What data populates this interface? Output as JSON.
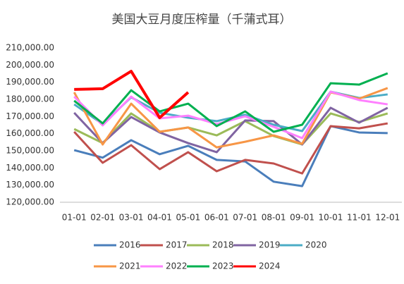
{
  "chart_data": {
    "type": "line",
    "title": "美国大豆月度压榨量（千蒲式耳）",
    "categories": [
      "01-01",
      "02-01",
      "03-01",
      "04-01",
      "05-01",
      "06-01",
      "07-01",
      "08-01",
      "09-01",
      "10-01",
      "11-01",
      "12-01"
    ],
    "ylim": [
      120000,
      210000
    ],
    "yticks": [
      {
        "value": 120000,
        "label": "120,000.00"
      },
      {
        "value": 130000,
        "label": "130,000.00"
      },
      {
        "value": 140000,
        "label": "140,000.00"
      },
      {
        "value": 150000,
        "label": "150,000.00"
      },
      {
        "value": 160000,
        "label": "160,000.00"
      },
      {
        "value": 170000,
        "label": "170,000.00"
      },
      {
        "value": 180000,
        "label": "180,000.00"
      },
      {
        "value": 190000,
        "label": "190,000.00"
      },
      {
        "value": 200000,
        "label": "200,000.00"
      },
      {
        "value": 210000,
        "label": "210,000.00"
      }
    ],
    "grid": false,
    "legend": "bottom",
    "series": [
      {
        "name": "2016",
        "color": "#4a7ebb",
        "values": [
          150400,
          146000,
          156200,
          148000,
          152900,
          144700,
          143800,
          132000,
          129400,
          164400,
          160700,
          160300
        ]
      },
      {
        "name": "2017",
        "color": "#c0504d",
        "values": [
          161100,
          143000,
          153300,
          139300,
          149200,
          138100,
          144700,
          142600,
          136800,
          164400,
          163100,
          166000
        ]
      },
      {
        "name": "2018",
        "color": "#9bbb59",
        "values": [
          162700,
          154500,
          171800,
          161100,
          163600,
          159000,
          167300,
          158600,
          153700,
          171800,
          166800,
          171800
        ]
      },
      {
        "name": "2019",
        "color": "#8064a2",
        "values": [
          172200,
          154500,
          169700,
          160700,
          154500,
          149200,
          167700,
          167300,
          153700,
          175100,
          166400,
          175100
        ]
      },
      {
        "name": "2020",
        "color": "#4bacc6",
        "values": [
          177100,
          165600,
          181200,
          172200,
          169300,
          167300,
          171000,
          165200,
          161500,
          184500,
          180800,
          182900
        ]
      },
      {
        "name": "2021",
        "color": "#f79646",
        "values": [
          184100,
          153700,
          177500,
          161100,
          163600,
          152000,
          155300,
          159000,
          154100,
          184100,
          180400,
          186600
        ]
      },
      {
        "name": "2022",
        "color": "#ff80ff",
        "values": [
          181600,
          164800,
          181600,
          168900,
          170500,
          165600,
          170100,
          164000,
          157400,
          184500,
          179600,
          177100
        ]
      },
      {
        "name": "2023",
        "color": "#00b050",
        "values": [
          179200,
          166000,
          185300,
          173000,
          177500,
          164400,
          173000,
          161100,
          165200,
          189400,
          188600,
          195200
        ]
      },
      {
        "name": "2024",
        "color": "#ff0000",
        "values": [
          185800,
          186200,
          196400,
          169300,
          184100,
          null,
          null,
          null,
          null,
          null,
          null,
          null
        ]
      }
    ]
  }
}
